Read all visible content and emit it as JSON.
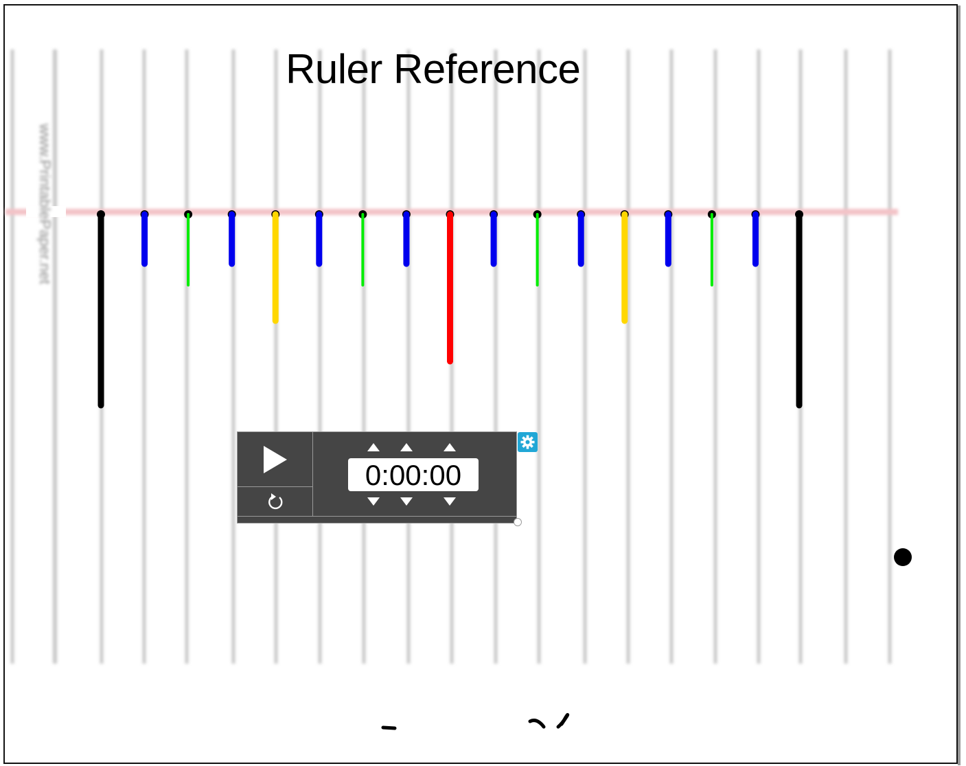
{
  "page": {
    "title": "Ruler Reference",
    "faint_side_text": "www.PrintablePaper.net"
  },
  "colors": {
    "inch": "#000000",
    "half": "#ff0000",
    "quarter": "#ffd700",
    "eighth": "#00ee00",
    "sixteenth": "#0000ee",
    "reference_line": "#f2c4c8",
    "grid_line": "#c8c8c8",
    "timer_bg": "#454545",
    "settings_bg": "#21a7d6"
  },
  "ruler": {
    "tick_sequence": [
      "inch",
      "sixteenth",
      "eighth",
      "sixteenth",
      "quarter",
      "sixteenth",
      "eighth",
      "sixteenth",
      "half",
      "sixteenth",
      "eighth",
      "sixteenth",
      "quarter",
      "sixteenth",
      "eighth",
      "sixteenth",
      "inch"
    ]
  },
  "timer": {
    "time": "0:00:00",
    "play_icon": "play-icon",
    "reset_icon": "reset-icon",
    "settings_icon": "gear-icon"
  }
}
